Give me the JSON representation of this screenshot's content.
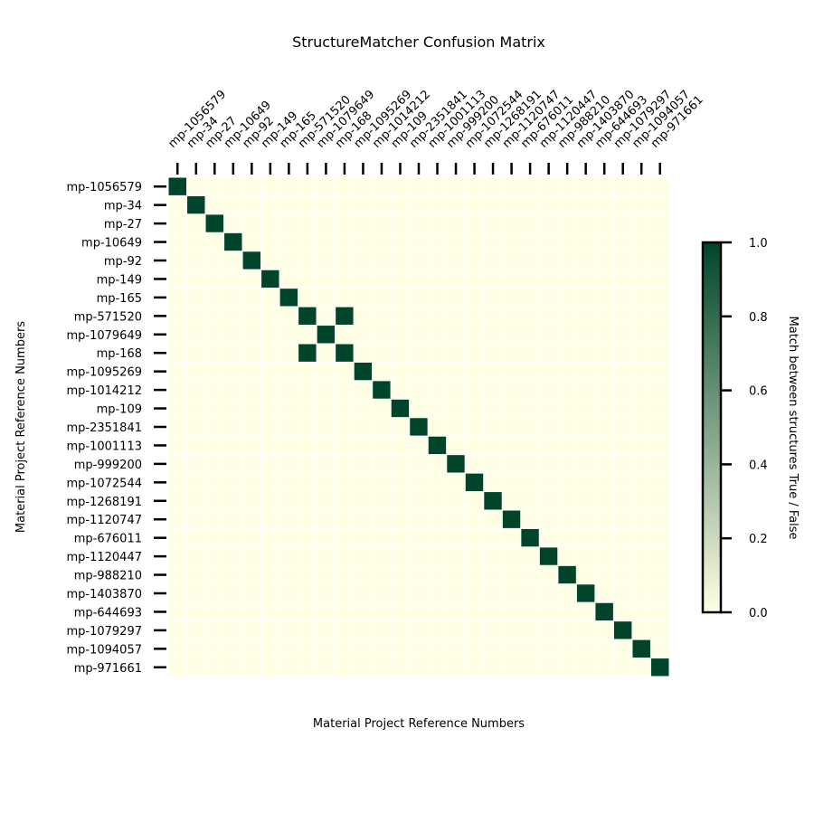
{
  "chart_data": {
    "type": "heatmap",
    "title": "StructureMatcher Confusion Matrix",
    "xlabel": "Material Project Reference Numbers",
    "ylabel": "Material Project Reference Numbers",
    "colorbar_label": "Match between structures True / False",
    "colorbar_range": [
      0.0,
      1.0
    ],
    "colorbar_ticks": [
      "0.0",
      "0.2",
      "0.4",
      "0.6",
      "0.8",
      "1.0"
    ],
    "colormap": [
      "#ffffe5",
      "#f7fcb9",
      "#d9f0a3",
      "#addd8e",
      "#78c679",
      "#41ab5d",
      "#238443",
      "#006837",
      "#004529"
    ],
    "grid_line_color": "#ffffff",
    "labels": [
      "mp-1056579",
      "mp-34",
      "mp-27",
      "mp-10649",
      "mp-92",
      "mp-149",
      "mp-165",
      "mp-571520",
      "mp-1079649",
      "mp-168",
      "mp-1095269",
      "mp-1014212",
      "mp-109",
      "mp-2351841",
      "mp-1001113",
      "mp-999200",
      "mp-1072544",
      "mp-1268191",
      "mp-1120747",
      "mp-676011",
      "mp-1120447",
      "mp-988210",
      "mp-1403870",
      "mp-644693",
      "mp-1079297",
      "mp-1094057",
      "mp-971661"
    ],
    "matrix": [
      [
        1,
        0,
        0,
        0,
        0,
        0,
        0,
        0,
        0,
        0,
        0,
        0,
        0,
        0,
        0,
        0,
        0,
        0,
        0,
        0,
        0,
        0,
        0,
        0,
        0,
        0,
        0
      ],
      [
        0,
        1,
        0,
        0,
        0,
        0,
        0,
        0,
        0,
        0,
        0,
        0,
        0,
        0,
        0,
        0,
        0,
        0,
        0,
        0,
        0,
        0,
        0,
        0,
        0,
        0,
        0
      ],
      [
        0,
        0,
        1,
        0,
        0,
        0,
        0,
        0,
        0,
        0,
        0,
        0,
        0,
        0,
        0,
        0,
        0,
        0,
        0,
        0,
        0,
        0,
        0,
        0,
        0,
        0,
        0
      ],
      [
        0,
        0,
        0,
        1,
        0,
        0,
        0,
        0,
        0,
        0,
        0,
        0,
        0,
        0,
        0,
        0,
        0,
        0,
        0,
        0,
        0,
        0,
        0,
        0,
        0,
        0,
        0
      ],
      [
        0,
        0,
        0,
        0,
        1,
        0,
        0,
        0,
        0,
        0,
        0,
        0,
        0,
        0,
        0,
        0,
        0,
        0,
        0,
        0,
        0,
        0,
        0,
        0,
        0,
        0,
        0
      ],
      [
        0,
        0,
        0,
        0,
        0,
        1,
        0,
        0,
        0,
        0,
        0,
        0,
        0,
        0,
        0,
        0,
        0,
        0,
        0,
        0,
        0,
        0,
        0,
        0,
        0,
        0,
        0
      ],
      [
        0,
        0,
        0,
        0,
        0,
        0,
        1,
        0,
        0,
        0,
        0,
        0,
        0,
        0,
        0,
        0,
        0,
        0,
        0,
        0,
        0,
        0,
        0,
        0,
        0,
        0,
        0
      ],
      [
        0,
        0,
        0,
        0,
        0,
        0,
        0,
        1,
        0,
        1,
        0,
        0,
        0,
        0,
        0,
        0,
        0,
        0,
        0,
        0,
        0,
        0,
        0,
        0,
        0,
        0,
        0
      ],
      [
        0,
        0,
        0,
        0,
        0,
        0,
        0,
        0,
        1,
        0,
        0,
        0,
        0,
        0,
        0,
        0,
        0,
        0,
        0,
        0,
        0,
        0,
        0,
        0,
        0,
        0,
        0
      ],
      [
        0,
        0,
        0,
        0,
        0,
        0,
        0,
        1,
        0,
        1,
        0,
        0,
        0,
        0,
        0,
        0,
        0,
        0,
        0,
        0,
        0,
        0,
        0,
        0,
        0,
        0,
        0
      ],
      [
        0,
        0,
        0,
        0,
        0,
        0,
        0,
        0,
        0,
        0,
        1,
        0,
        0,
        0,
        0,
        0,
        0,
        0,
        0,
        0,
        0,
        0,
        0,
        0,
        0,
        0,
        0
      ],
      [
        0,
        0,
        0,
        0,
        0,
        0,
        0,
        0,
        0,
        0,
        0,
        1,
        0,
        0,
        0,
        0,
        0,
        0,
        0,
        0,
        0,
        0,
        0,
        0,
        0,
        0,
        0
      ],
      [
        0,
        0,
        0,
        0,
        0,
        0,
        0,
        0,
        0,
        0,
        0,
        0,
        1,
        0,
        0,
        0,
        0,
        0,
        0,
        0,
        0,
        0,
        0,
        0,
        0,
        0,
        0
      ],
      [
        0,
        0,
        0,
        0,
        0,
        0,
        0,
        0,
        0,
        0,
        0,
        0,
        0,
        1,
        0,
        0,
        0,
        0,
        0,
        0,
        0,
        0,
        0,
        0,
        0,
        0,
        0
      ],
      [
        0,
        0,
        0,
        0,
        0,
        0,
        0,
        0,
        0,
        0,
        0,
        0,
        0,
        0,
        1,
        0,
        0,
        0,
        0,
        0,
        0,
        0,
        0,
        0,
        0,
        0,
        0
      ],
      [
        0,
        0,
        0,
        0,
        0,
        0,
        0,
        0,
        0,
        0,
        0,
        0,
        0,
        0,
        0,
        1,
        0,
        0,
        0,
        0,
        0,
        0,
        0,
        0,
        0,
        0,
        0
      ],
      [
        0,
        0,
        0,
        0,
        0,
        0,
        0,
        0,
        0,
        0,
        0,
        0,
        0,
        0,
        0,
        0,
        1,
        0,
        0,
        0,
        0,
        0,
        0,
        0,
        0,
        0,
        0
      ],
      [
        0,
        0,
        0,
        0,
        0,
        0,
        0,
        0,
        0,
        0,
        0,
        0,
        0,
        0,
        0,
        0,
        0,
        1,
        0,
        0,
        0,
        0,
        0,
        0,
        0,
        0,
        0
      ],
      [
        0,
        0,
        0,
        0,
        0,
        0,
        0,
        0,
        0,
        0,
        0,
        0,
        0,
        0,
        0,
        0,
        0,
        0,
        1,
        0,
        0,
        0,
        0,
        0,
        0,
        0,
        0
      ],
      [
        0,
        0,
        0,
        0,
        0,
        0,
        0,
        0,
        0,
        0,
        0,
        0,
        0,
        0,
        0,
        0,
        0,
        0,
        0,
        1,
        0,
        0,
        0,
        0,
        0,
        0,
        0
      ],
      [
        0,
        0,
        0,
        0,
        0,
        0,
        0,
        0,
        0,
        0,
        0,
        0,
        0,
        0,
        0,
        0,
        0,
        0,
        0,
        0,
        1,
        0,
        0,
        0,
        0,
        0,
        0
      ],
      [
        0,
        0,
        0,
        0,
        0,
        0,
        0,
        0,
        0,
        0,
        0,
        0,
        0,
        0,
        0,
        0,
        0,
        0,
        0,
        0,
        0,
        1,
        0,
        0,
        0,
        0,
        0
      ],
      [
        0,
        0,
        0,
        0,
        0,
        0,
        0,
        0,
        0,
        0,
        0,
        0,
        0,
        0,
        0,
        0,
        0,
        0,
        0,
        0,
        0,
        0,
        1,
        0,
        0,
        0,
        0
      ],
      [
        0,
        0,
        0,
        0,
        0,
        0,
        0,
        0,
        0,
        0,
        0,
        0,
        0,
        0,
        0,
        0,
        0,
        0,
        0,
        0,
        0,
        0,
        0,
        1,
        0,
        0,
        0
      ],
      [
        0,
        0,
        0,
        0,
        0,
        0,
        0,
        0,
        0,
        0,
        0,
        0,
        0,
        0,
        0,
        0,
        0,
        0,
        0,
        0,
        0,
        0,
        0,
        0,
        1,
        0,
        0
      ],
      [
        0,
        0,
        0,
        0,
        0,
        0,
        0,
        0,
        0,
        0,
        0,
        0,
        0,
        0,
        0,
        0,
        0,
        0,
        0,
        0,
        0,
        0,
        0,
        0,
        0,
        1,
        0
      ],
      [
        0,
        0,
        0,
        0,
        0,
        0,
        0,
        0,
        0,
        0,
        0,
        0,
        0,
        0,
        0,
        0,
        0,
        0,
        0,
        0,
        0,
        0,
        0,
        0,
        0,
        0,
        1
      ]
    ]
  }
}
